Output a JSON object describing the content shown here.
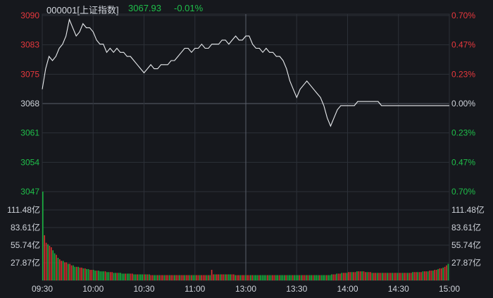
{
  "header": {
    "index_code_name": "000001[上证指数]",
    "price": "3067.93",
    "change_pct": "-0.01%"
  },
  "colors": {
    "background": "#16181d",
    "grid": "#2c3038",
    "axis_up": "#e8383d",
    "axis_flat": "#cfd3da",
    "axis_down": "#1fbf4a",
    "price_line": "#e9ecef",
    "vol_up": "#d8302f",
    "vol_down": "#18b23f",
    "vol_label": "#cfd3da"
  },
  "chart_data": [
    {
      "type": "line",
      "title": "000001[上证指数]",
      "ylim": [
        3047,
        3090
      ],
      "left_ticks": [
        "3090",
        "3083",
        "3075",
        "3068",
        "3061",
        "3054",
        "3047"
      ],
      "right_ticks": [
        "0.70%",
        "0.47%",
        "0.23%",
        "0.00%",
        "0.23%",
        "0.47%",
        "0.70%"
      ],
      "x_ticks": [
        "09:30",
        "10:00",
        "10:30",
        "11:00",
        "13:00",
        "13:30",
        "14:00",
        "14:30",
        "15:00"
      ],
      "series": [
        {
          "x": [
            0,
            2,
            4,
            6,
            8,
            10,
            12,
            14,
            16,
            18,
            20,
            22,
            24,
            26,
            28,
            30,
            32,
            34,
            36,
            38,
            40,
            42,
            44,
            46,
            48,
            50,
            52,
            54,
            56,
            58,
            60,
            62,
            64,
            66,
            68,
            70,
            72,
            74,
            76,
            78,
            80,
            82,
            84,
            86,
            88,
            90,
            92,
            94,
            96,
            98,
            100,
            102,
            104,
            106,
            108,
            110,
            112,
            114,
            116,
            118,
            120,
            122,
            124,
            126,
            128,
            130,
            132,
            134,
            136,
            138,
            140,
            142,
            144,
            146,
            148,
            150,
            152,
            154,
            156,
            158,
            160,
            162,
            164,
            166,
            168,
            170,
            172,
            174,
            176,
            178,
            180,
            182,
            184,
            186,
            188,
            190,
            192,
            194,
            196,
            198,
            200,
            202,
            204,
            206,
            208,
            210,
            212,
            214,
            216,
            218,
            220,
            222,
            224,
            226,
            228,
            230,
            232,
            234,
            236,
            238,
            240
          ],
          "values": [
            3072,
            3077,
            3080,
            3079,
            3080,
            3082,
            3083,
            3085,
            3089,
            3087,
            3085,
            3086,
            3088,
            3087,
            3087,
            3086,
            3084,
            3083,
            3083,
            3081,
            3082,
            3081,
            3082,
            3081,
            3081,
            3080,
            3080,
            3079,
            3078,
            3077,
            3076,
            3077,
            3078,
            3077,
            3077,
            3078,
            3078,
            3078,
            3079,
            3079,
            3080,
            3081,
            3082,
            3082,
            3081,
            3082,
            3082,
            3083,
            3082,
            3082,
            3083,
            3083,
            3083,
            3084,
            3084,
            3083,
            3084,
            3085,
            3084,
            3084,
            3085,
            3085,
            3083,
            3082,
            3082,
            3081,
            3082,
            3081,
            3081,
            3080,
            3080,
            3079,
            3077,
            3074,
            3072,
            3070,
            3072,
            3073,
            3074,
            3073,
            3072,
            3071,
            3070,
            3068,
            3065,
            3063,
            3065,
            3067,
            3068,
            3068,
            3068,
            3068,
            3068,
            3069,
            3069,
            3069,
            3069,
            3069,
            3069,
            3069,
            3068,
            3068,
            3068,
            3068,
            3068,
            3068,
            3068,
            3068,
            3068,
            3068,
            3068,
            3068,
            3068,
            3068,
            3068,
            3068,
            3068,
            3068,
            3068,
            3068,
            3068
          ]
        }
      ]
    },
    {
      "type": "bar",
      "title": "",
      "ylim": [
        0,
        118
      ],
      "ticks": [
        "111.48亿",
        "83.61亿",
        "55.74亿",
        "27.87亿"
      ],
      "values": [
        118,
        60,
        50,
        48,
        46,
        44,
        40,
        36,
        34,
        30,
        28,
        26,
        26,
        24,
        24,
        22,
        22,
        20,
        20,
        18,
        18,
        18,
        17,
        17,
        16,
        16,
        15,
        15,
        14,
        14,
        14,
        13,
        13,
        13,
        12,
        12,
        12,
        12,
        11,
        11,
        11,
        11,
        10,
        10,
        10,
        10,
        10,
        9,
        9,
        9,
        9,
        9,
        9,
        9,
        8,
        8,
        8,
        8,
        8,
        8,
        8,
        8,
        8,
        8,
        7,
        7,
        7,
        7,
        7,
        7,
        7,
        7,
        7,
        7,
        7,
        7,
        7,
        7,
        7,
        7,
        7,
        7,
        7,
        7,
        7,
        7,
        7,
        7,
        7,
        7,
        7,
        7,
        7,
        7,
        7,
        7,
        7,
        7,
        7,
        7,
        14,
        8,
        8,
        8,
        8,
        8,
        8,
        8,
        8,
        8,
        8,
        8,
        8,
        8,
        7,
        7,
        7,
        7,
        7,
        7,
        7,
        7,
        7,
        7,
        7,
        7,
        7,
        7,
        7,
        7,
        7,
        7,
        7,
        7,
        7,
        7,
        7,
        7,
        7,
        7,
        7,
        7,
        7,
        7,
        7,
        7,
        7,
        7,
        7,
        7,
        7,
        7,
        7,
        7,
        7,
        7,
        7,
        7,
        7,
        7,
        7,
        7,
        7,
        7,
        7,
        7,
        7,
        7,
        7,
        7,
        7,
        8,
        8,
        8,
        9,
        9,
        9,
        10,
        10,
        10,
        10,
        11,
        11,
        11,
        11,
        11,
        12,
        12,
        12,
        12,
        12,
        11,
        11,
        11,
        11,
        10,
        10,
        10,
        10,
        10,
        10,
        10,
        10,
        10,
        10,
        10,
        10,
        10,
        10,
        10,
        10,
        10,
        10,
        10,
        10,
        10,
        10,
        10,
        10,
        11,
        11,
        11,
        11,
        11,
        11,
        12,
        12,
        12,
        12,
        13,
        13,
        13,
        14,
        14,
        15,
        16,
        16,
        17,
        18,
        20,
        22
      ]
    }
  ]
}
